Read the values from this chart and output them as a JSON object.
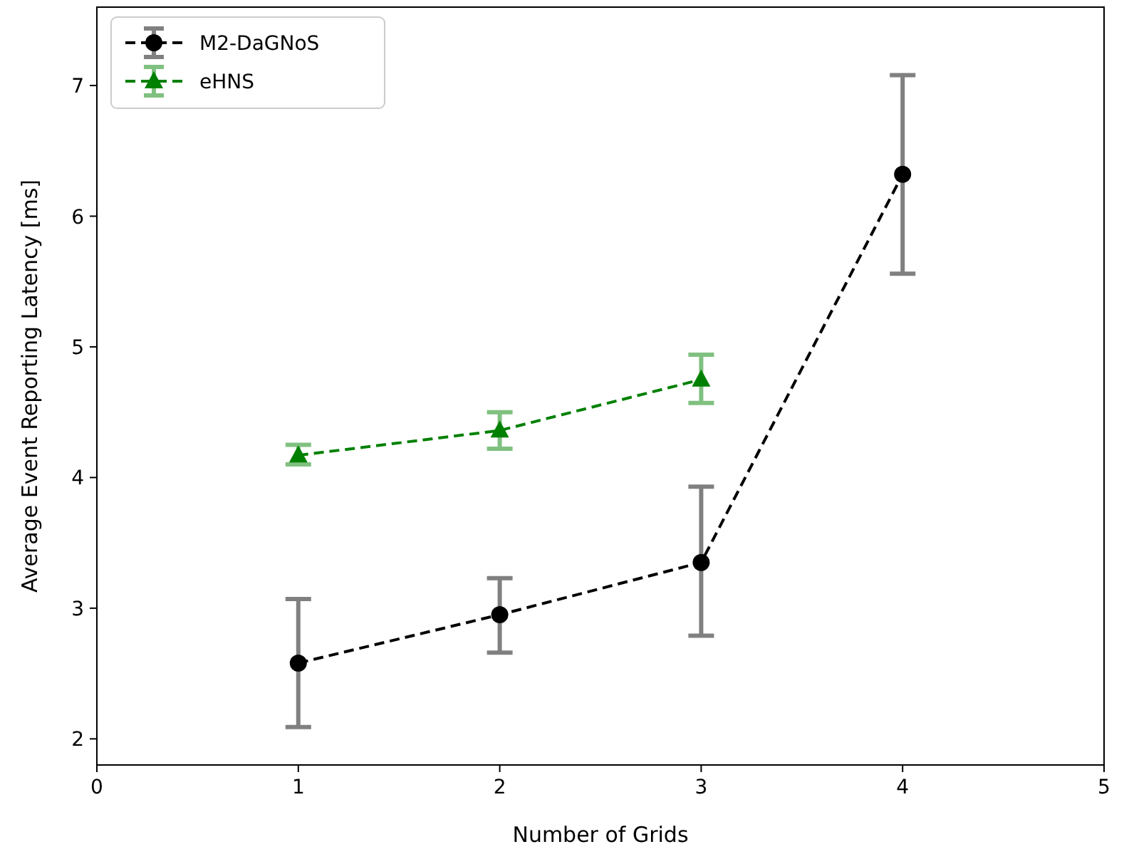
{
  "chart_data": {
    "type": "line",
    "xlabel": "Number of Grids",
    "ylabel": "Average Event Reporting Latency [ms]",
    "xlim": [
      0,
      5
    ],
    "xticks": [
      0,
      1,
      2,
      3,
      4,
      5
    ],
    "ylim": [
      1.8,
      7.6
    ],
    "yticks": [
      2,
      3,
      4,
      5,
      6,
      7
    ],
    "legend": "top left",
    "line_style": "dashed",
    "grid": false,
    "series": [
      {
        "name": "M2-DaGNoS",
        "color": "#000000",
        "marker": "circle",
        "x": [
          1,
          2,
          3,
          4
        ],
        "values": [
          2.58,
          2.95,
          3.35,
          6.32
        ],
        "errors": [
          [
            2.09,
            3.07
          ],
          [
            2.66,
            3.23
          ],
          [
            2.79,
            3.93
          ],
          [
            5.56,
            7.08
          ]
        ]
      },
      {
        "name": "eHNS",
        "color": "#008000",
        "marker": "triangle",
        "x": [
          1,
          2,
          3
        ],
        "values": [
          4.17,
          4.36,
          4.75
        ],
        "errors": [
          [
            4.1,
            4.25
          ],
          [
            4.22,
            4.5
          ],
          [
            4.57,
            4.94
          ]
        ]
      }
    ]
  }
}
